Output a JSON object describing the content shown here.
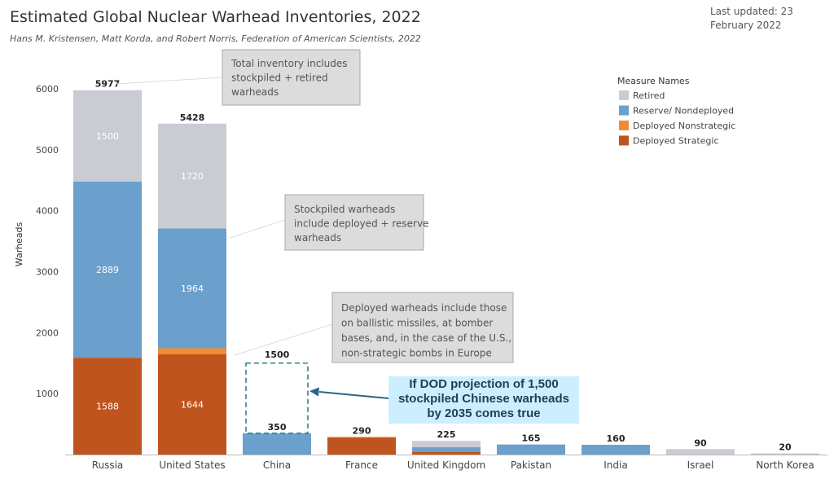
{
  "header": {
    "title": "Estimated Global Nuclear Warhead Inventories, 2022",
    "subtitle": "Hans M. Kristensen, Matt Korda, and Robert Norris, Federation of American Scientists, 2022",
    "updated": "Last updated: 23 February 2022"
  },
  "chart_data": {
    "type": "bar",
    "stacked": true,
    "ylabel": "Warheads",
    "xlabel": "",
    "ylim": [
      0,
      6000
    ],
    "yticks": [
      0,
      1000,
      2000,
      3000,
      4000,
      5000,
      6000
    ],
    "categories": [
      "Russia",
      "United States",
      "China",
      "France",
      "United Kingdom",
      "Pakistan",
      "India",
      "Israel",
      "North Korea"
    ],
    "totals": [
      5977,
      5428,
      350,
      290,
      225,
      165,
      160,
      90,
      20
    ],
    "series": [
      {
        "name": "Deployed Strategic",
        "color": "#c0541e",
        "values": [
          1588,
          1644,
          0,
          280,
          40,
          0,
          0,
          0,
          0
        ],
        "labels": [
          "1588",
          "1644",
          "",
          "",
          "",
          "",
          "",
          "",
          ""
        ]
      },
      {
        "name": "Deployed Nonstrategic",
        "color": "#f28b33",
        "values": [
          0,
          100,
          0,
          10,
          0,
          0,
          0,
          0,
          0
        ],
        "labels": [
          "",
          "",
          "",
          "",
          "",
          "",
          "",
          "",
          ""
        ]
      },
      {
        "name": "Reserve/ Nondeployed",
        "color": "#6b9fcc",
        "values": [
          2889,
          1964,
          350,
          0,
          80,
          165,
          160,
          0,
          0
        ],
        "labels": [
          "2889",
          "1964",
          "",
          "",
          "",
          "",
          "",
          "",
          ""
        ]
      },
      {
        "name": "Retired",
        "color": "#c9cdd3",
        "values": [
          1500,
          1720,
          0,
          0,
          105,
          0,
          0,
          90,
          20
        ],
        "labels": [
          "1500",
          "1720",
          "",
          "",
          "",
          "",
          "",
          "",
          ""
        ]
      }
    ],
    "legend": {
      "title": "Measure Names",
      "position": "top-right",
      "items": [
        {
          "name": "Retired",
          "color": "#c9cdd3"
        },
        {
          "name": "Reserve/ Nondeployed",
          "color": "#6b9fcc"
        },
        {
          "name": "Deployed Nonstrategic",
          "color": "#f28b33"
        },
        {
          "name": "Deployed Strategic",
          "color": "#c0541e"
        }
      ]
    },
    "projection": {
      "category": "China",
      "value": 1500,
      "label": "1500"
    },
    "annotations": [
      {
        "id": "total",
        "lines": [
          "Total inventory includes",
          "stockpiled + retired",
          "warheads"
        ]
      },
      {
        "id": "stockpiled",
        "lines": [
          "Stockpiled warheads",
          "include deployed + reserve",
          "warheads"
        ]
      },
      {
        "id": "deployed",
        "lines": [
          "Deployed warheads include those",
          "on ballistic missiles, at bomber",
          "bases, and, in the case of the U.S.,",
          "non-strategic bombs in Europe"
        ]
      },
      {
        "id": "dod",
        "lines": [
          "If DOD projection of 1,500",
          "stockpiled Chinese warheads",
          "by 2035 comes true"
        ]
      }
    ]
  }
}
